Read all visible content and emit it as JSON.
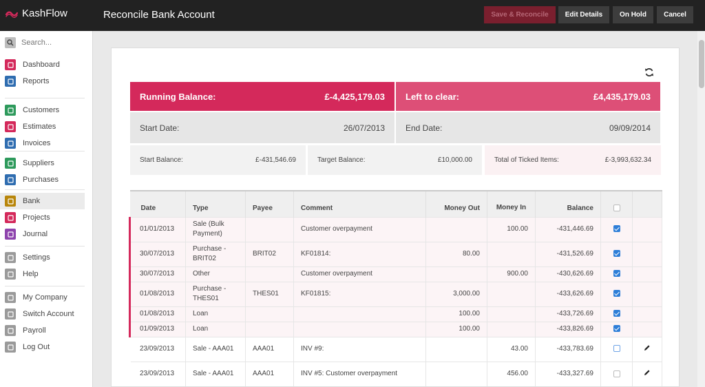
{
  "app": {
    "name": "KashFlow"
  },
  "header": {
    "title": "Reconcile Bank Account",
    "buttons": {
      "save_reconcile": "Save & Reconcile",
      "edit_details": "Edit Details",
      "on_hold": "On Hold",
      "cancel": "Cancel"
    }
  },
  "sidebar": {
    "search_placeholder": "Search...",
    "groups": [
      [
        {
          "label": "Dashboard",
          "icon": "dashboard-icon",
          "color": "#d4295b"
        },
        {
          "label": "Reports",
          "icon": "reports-icon",
          "color": "#2f6db0"
        }
      ],
      [
        {
          "label": "Customers",
          "icon": "customers-icon",
          "color": "#2e9a5c"
        },
        {
          "label": "Estimates",
          "icon": "estimates-icon",
          "color": "#d4295b"
        },
        {
          "label": "Invoices",
          "icon": "invoices-icon",
          "color": "#2f6db0"
        }
      ],
      [
        {
          "label": "Suppliers",
          "icon": "suppliers-icon",
          "color": "#2e9a5c"
        },
        {
          "label": "Purchases",
          "icon": "purchases-icon",
          "color": "#2f6db0"
        }
      ],
      [
        {
          "label": "Bank",
          "icon": "bank-icon",
          "color": "#b8860b",
          "active": true
        },
        {
          "label": "Projects",
          "icon": "projects-icon",
          "color": "#d4295b"
        },
        {
          "label": "Journal",
          "icon": "journal-icon",
          "color": "#8e44ad"
        }
      ],
      [
        {
          "label": "Settings",
          "icon": "settings-icon",
          "color": "#9a9a9a"
        },
        {
          "label": "Help",
          "icon": "help-icon",
          "color": "#9a9a9a"
        }
      ],
      [
        {
          "label": "My Company",
          "icon": "company-icon",
          "color": "#9a9a9a"
        },
        {
          "label": "Switch Account",
          "icon": "switch-icon",
          "color": "#9a9a9a"
        },
        {
          "label": "Payroll",
          "icon": "payroll-icon",
          "color": "#9a9a9a"
        },
        {
          "label": "Log Out",
          "icon": "logout-icon",
          "color": "#9a9a9a"
        }
      ]
    ]
  },
  "summary": {
    "running_balance_label": "Running Balance:",
    "running_balance": "£-4,425,179.03",
    "left_to_clear_label": "Left to clear:",
    "left_to_clear": "£4,435,179.03",
    "start_date_label": "Start Date:",
    "start_date": "26/07/2013",
    "end_date_label": "End Date:",
    "end_date": "09/09/2014",
    "start_balance_label": "Start Balance:",
    "start_balance": "£-431,546.69",
    "target_balance_label": "Target Balance:",
    "target_balance": "£10,000.00",
    "ticked_total_label": "Total of Ticked Items:",
    "ticked_total": "£-3,993,632.34"
  },
  "table": {
    "headers": [
      "Date",
      "Type",
      "Payee",
      "Comment",
      "Money Out",
      "Money In",
      "Balance"
    ],
    "rows": [
      {
        "date": "01/01/2013",
        "type": "Sale (Bulk Payment)",
        "payee": "",
        "comment": "Customer overpayment",
        "out": "",
        "in": "100.00",
        "balance": "-431,446.69",
        "ticked": true,
        "editable": false
      },
      {
        "date": "30/07/2013",
        "type": "Purchase - BRIT02",
        "payee": "BRIT02",
        "comment": "KF01814:",
        "out": "80.00",
        "in": "",
        "balance": "-431,526.69",
        "ticked": true,
        "editable": false
      },
      {
        "date": "30/07/2013",
        "type": "Other",
        "payee": "",
        "comment": "Customer overpayment",
        "out": "",
        "in": "900.00",
        "balance": "-430,626.69",
        "ticked": true,
        "editable": false
      },
      {
        "date": "01/08/2013",
        "type": "Purchase - THES01",
        "payee": "THES01",
        "comment": "KF01815:",
        "out": "3,000.00",
        "in": "",
        "balance": "-433,626.69",
        "ticked": true,
        "editable": false
      },
      {
        "date": "01/08/2013",
        "type": "Loan",
        "payee": "",
        "comment": "",
        "out": "100.00",
        "in": "",
        "balance": "-433,726.69",
        "ticked": true,
        "editable": false
      },
      {
        "date": "01/09/2013",
        "type": "Loan",
        "payee": "",
        "comment": "",
        "out": "100.00",
        "in": "",
        "balance": "-433,826.69",
        "ticked": true,
        "editable": false
      },
      {
        "date": "23/09/2013",
        "type": "Sale - AAA01",
        "payee": "AAA01",
        "comment": "INV #9:",
        "out": "",
        "in": "43.00",
        "balance": "-433,783.69",
        "ticked": false,
        "editable": true
      },
      {
        "date": "23/09/2013",
        "type": "Sale - AAA01",
        "payee": "AAA01",
        "comment": "INV #5: Customer overpayment",
        "out": "",
        "in": "456.00",
        "balance": "-433,327.69",
        "ticked": false,
        "editable": true
      }
    ]
  }
}
